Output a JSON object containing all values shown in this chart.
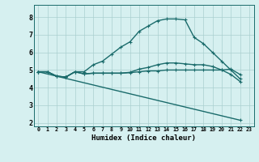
{
  "xlabel": "Humidex (Indice chaleur)",
  "bg_color": "#d6f0f0",
  "grid_color": "#aacfcf",
  "line_color": "#1a6b6b",
  "xlim": [
    -0.5,
    23.5
  ],
  "ylim": [
    1.8,
    8.7
  ],
  "yticks": [
    2,
    3,
    4,
    5,
    6,
    7,
    8
  ],
  "xticks": [
    0,
    1,
    2,
    3,
    4,
    5,
    6,
    7,
    8,
    9,
    10,
    11,
    12,
    13,
    14,
    15,
    16,
    17,
    18,
    19,
    20,
    21,
    22,
    23
  ],
  "series1_x": [
    0,
    1,
    2,
    3,
    4,
    5,
    6,
    7,
    8,
    9,
    10,
    11,
    12,
    13,
    14,
    15,
    16,
    17,
    18,
    19,
    20,
    21,
    22
  ],
  "series1_y": [
    4.9,
    4.9,
    4.65,
    4.6,
    4.9,
    4.78,
    4.82,
    4.82,
    4.82,
    4.82,
    4.85,
    4.9,
    4.95,
    4.95,
    5.0,
    5.0,
    5.0,
    5.0,
    5.0,
    5.0,
    5.0,
    5.05,
    4.75
  ],
  "series2_x": [
    0,
    1,
    2,
    3,
    4,
    5,
    6,
    7,
    8,
    9,
    10,
    11,
    12,
    13,
    14,
    15,
    16,
    17,
    18,
    19,
    20,
    21,
    22
  ],
  "series2_y": [
    4.9,
    4.9,
    4.65,
    4.6,
    4.9,
    4.78,
    4.82,
    4.82,
    4.82,
    4.82,
    4.87,
    5.05,
    5.15,
    5.3,
    5.4,
    5.4,
    5.35,
    5.3,
    5.3,
    5.2,
    5.0,
    4.75,
    4.35
  ],
  "series3_x": [
    0,
    1,
    2,
    3,
    4,
    5,
    6,
    7,
    8,
    9,
    10,
    11,
    12,
    13,
    14,
    15,
    16,
    17,
    18,
    19,
    20,
    21,
    22
  ],
  "series3_y": [
    4.9,
    4.9,
    4.65,
    4.6,
    4.9,
    4.9,
    5.3,
    5.5,
    5.9,
    6.3,
    6.6,
    7.2,
    7.5,
    7.8,
    7.9,
    7.9,
    7.85,
    6.85,
    6.5,
    6.0,
    5.5,
    5.0,
    4.5
  ],
  "series4_x": [
    0,
    22
  ],
  "series4_y": [
    4.9,
    2.15
  ]
}
